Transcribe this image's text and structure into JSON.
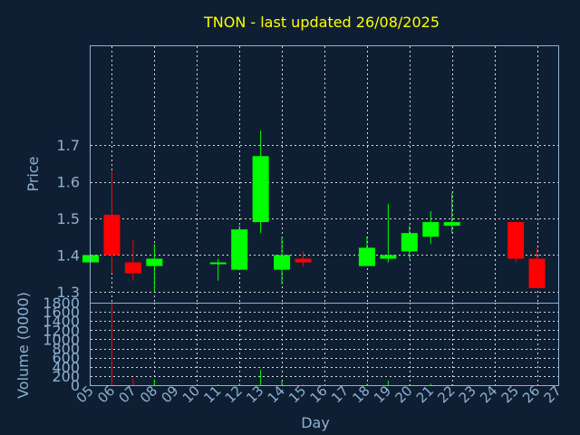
{
  "chart_data": {
    "type": "candlestick",
    "title": "TNON - last updated 26/08/2025",
    "xlabel": "Day",
    "ylabel": "Price",
    "volume_label": "Volume (0000)",
    "x_ticks": [
      "05",
      "06",
      "07",
      "08",
      "09",
      "10",
      "11",
      "12",
      "13",
      "14",
      "15",
      "16",
      "17",
      "18",
      "19",
      "20",
      "21",
      "22",
      "23",
      "24",
      "25",
      "26",
      "27"
    ],
    "price_ticks": [
      1.3,
      1.4,
      1.5,
      1.6,
      1.7
    ],
    "price_tick_labels": [
      "1.3",
      "1.4",
      "1.5",
      "1.6",
      "1.7"
    ],
    "price_ylim": [
      1.27,
      1.97
    ],
    "volume_ticks": [
      0,
      200,
      400,
      600,
      800,
      1000,
      1200,
      1400,
      1600,
      1800
    ],
    "volume_tick_labels": [
      "0",
      "200",
      "400",
      "600",
      "800",
      "1000",
      "1200",
      "1400",
      "1600",
      "1800"
    ],
    "volume_ylim": [
      0,
      1800
    ],
    "grid": true,
    "colors": {
      "up": "#00ff00",
      "down": "#ff0000",
      "title": "#ffff00",
      "axis": "#8fb0d0",
      "background": "#0f1f33",
      "grid": "#d8d8d8"
    },
    "candles": [
      {
        "day": "05",
        "open": 1.38,
        "close": 1.4,
        "high": 1.4,
        "low": 1.38,
        "volume": 10
      },
      {
        "day": "06",
        "open": 1.51,
        "close": 1.4,
        "high": 1.63,
        "low": 1.35,
        "volume": 1800
      },
      {
        "day": "07",
        "open": 1.38,
        "close": 1.35,
        "high": 1.44,
        "low": 1.33,
        "volume": 150
      },
      {
        "day": "08",
        "open": 1.37,
        "close": 1.39,
        "high": 1.43,
        "low": 1.3,
        "volume": 120
      },
      {
        "day": "11",
        "open": 1.38,
        "close": 1.38,
        "high": 1.39,
        "low": 1.33,
        "volume": 20
      },
      {
        "day": "12",
        "open": 1.36,
        "close": 1.47,
        "high": 1.48,
        "low": 1.36,
        "volume": 40
      },
      {
        "day": "13",
        "open": 1.49,
        "close": 1.67,
        "high": 1.74,
        "low": 1.46,
        "volume": 330
      },
      {
        "day": "14",
        "open": 1.36,
        "close": 1.4,
        "high": 1.45,
        "low": 1.32,
        "volume": 90
      },
      {
        "day": "15",
        "open": 1.39,
        "close": 1.38,
        "high": 1.41,
        "low": 1.37,
        "volume": 20
      },
      {
        "day": "18",
        "open": 1.37,
        "close": 1.42,
        "high": 1.45,
        "low": 1.37,
        "volume": 30
      },
      {
        "day": "19",
        "open": 1.39,
        "close": 1.4,
        "high": 1.54,
        "low": 1.38,
        "volume": 100
      },
      {
        "day": "20",
        "open": 1.41,
        "close": 1.46,
        "high": 1.48,
        "low": 1.39,
        "volume": 20
      },
      {
        "day": "21",
        "open": 1.45,
        "close": 1.49,
        "high": 1.52,
        "low": 1.43,
        "volume": 30
      },
      {
        "day": "22",
        "open": 1.48,
        "close": 1.49,
        "high": 1.57,
        "low": 1.46,
        "volume": 20
      },
      {
        "day": "25",
        "open": 1.49,
        "close": 1.39,
        "high": 1.49,
        "low": 1.38,
        "volume": 10
      },
      {
        "day": "26",
        "open": 1.39,
        "close": 1.31,
        "high": 1.42,
        "low": 1.31,
        "volume": 10
      }
    ]
  }
}
